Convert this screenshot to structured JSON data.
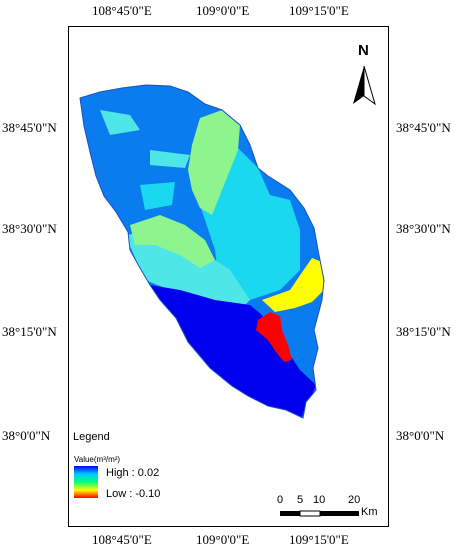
{
  "axis_labels": {
    "top": [
      "108°45'0\"E",
      "109°0'0\"E",
      "109°15'0\"E"
    ],
    "bottom": [
      "108°45'0\"E",
      "109°0'0\"E",
      "109°15'0\"E"
    ],
    "left": [
      "38°45'0\"N",
      "38°30'0\"N",
      "38°15'0\"N",
      "38°0'0\"N"
    ],
    "right": [
      "38°45'0\"N",
      "38°30'0\"N",
      "38°15'0\"N",
      "38°0'0\"N"
    ]
  },
  "north_arrow": {
    "label": "N"
  },
  "legend": {
    "title": "Legend",
    "unit_label": "Value(m³/m²)",
    "high_label": "High : 0.02",
    "low_label": "Low : -0.10",
    "ramp_colors": [
      "#0000ff",
      "#00c8ff",
      "#00ff80",
      "#ffff00",
      "#ff0000"
    ]
  },
  "scale_bar": {
    "ticks": [
      "0",
      "5",
      "10",
      "20"
    ],
    "unit": "Km"
  },
  "zone_colors": {
    "dark_blue": "#0000ee",
    "mid_blue": "#0a7cf0",
    "cyan": "#1ad8f0",
    "light_cyan": "#4ee6e6",
    "light_green": "#8ef58e",
    "yellow": "#ffff00",
    "red": "#ff0000"
  }
}
